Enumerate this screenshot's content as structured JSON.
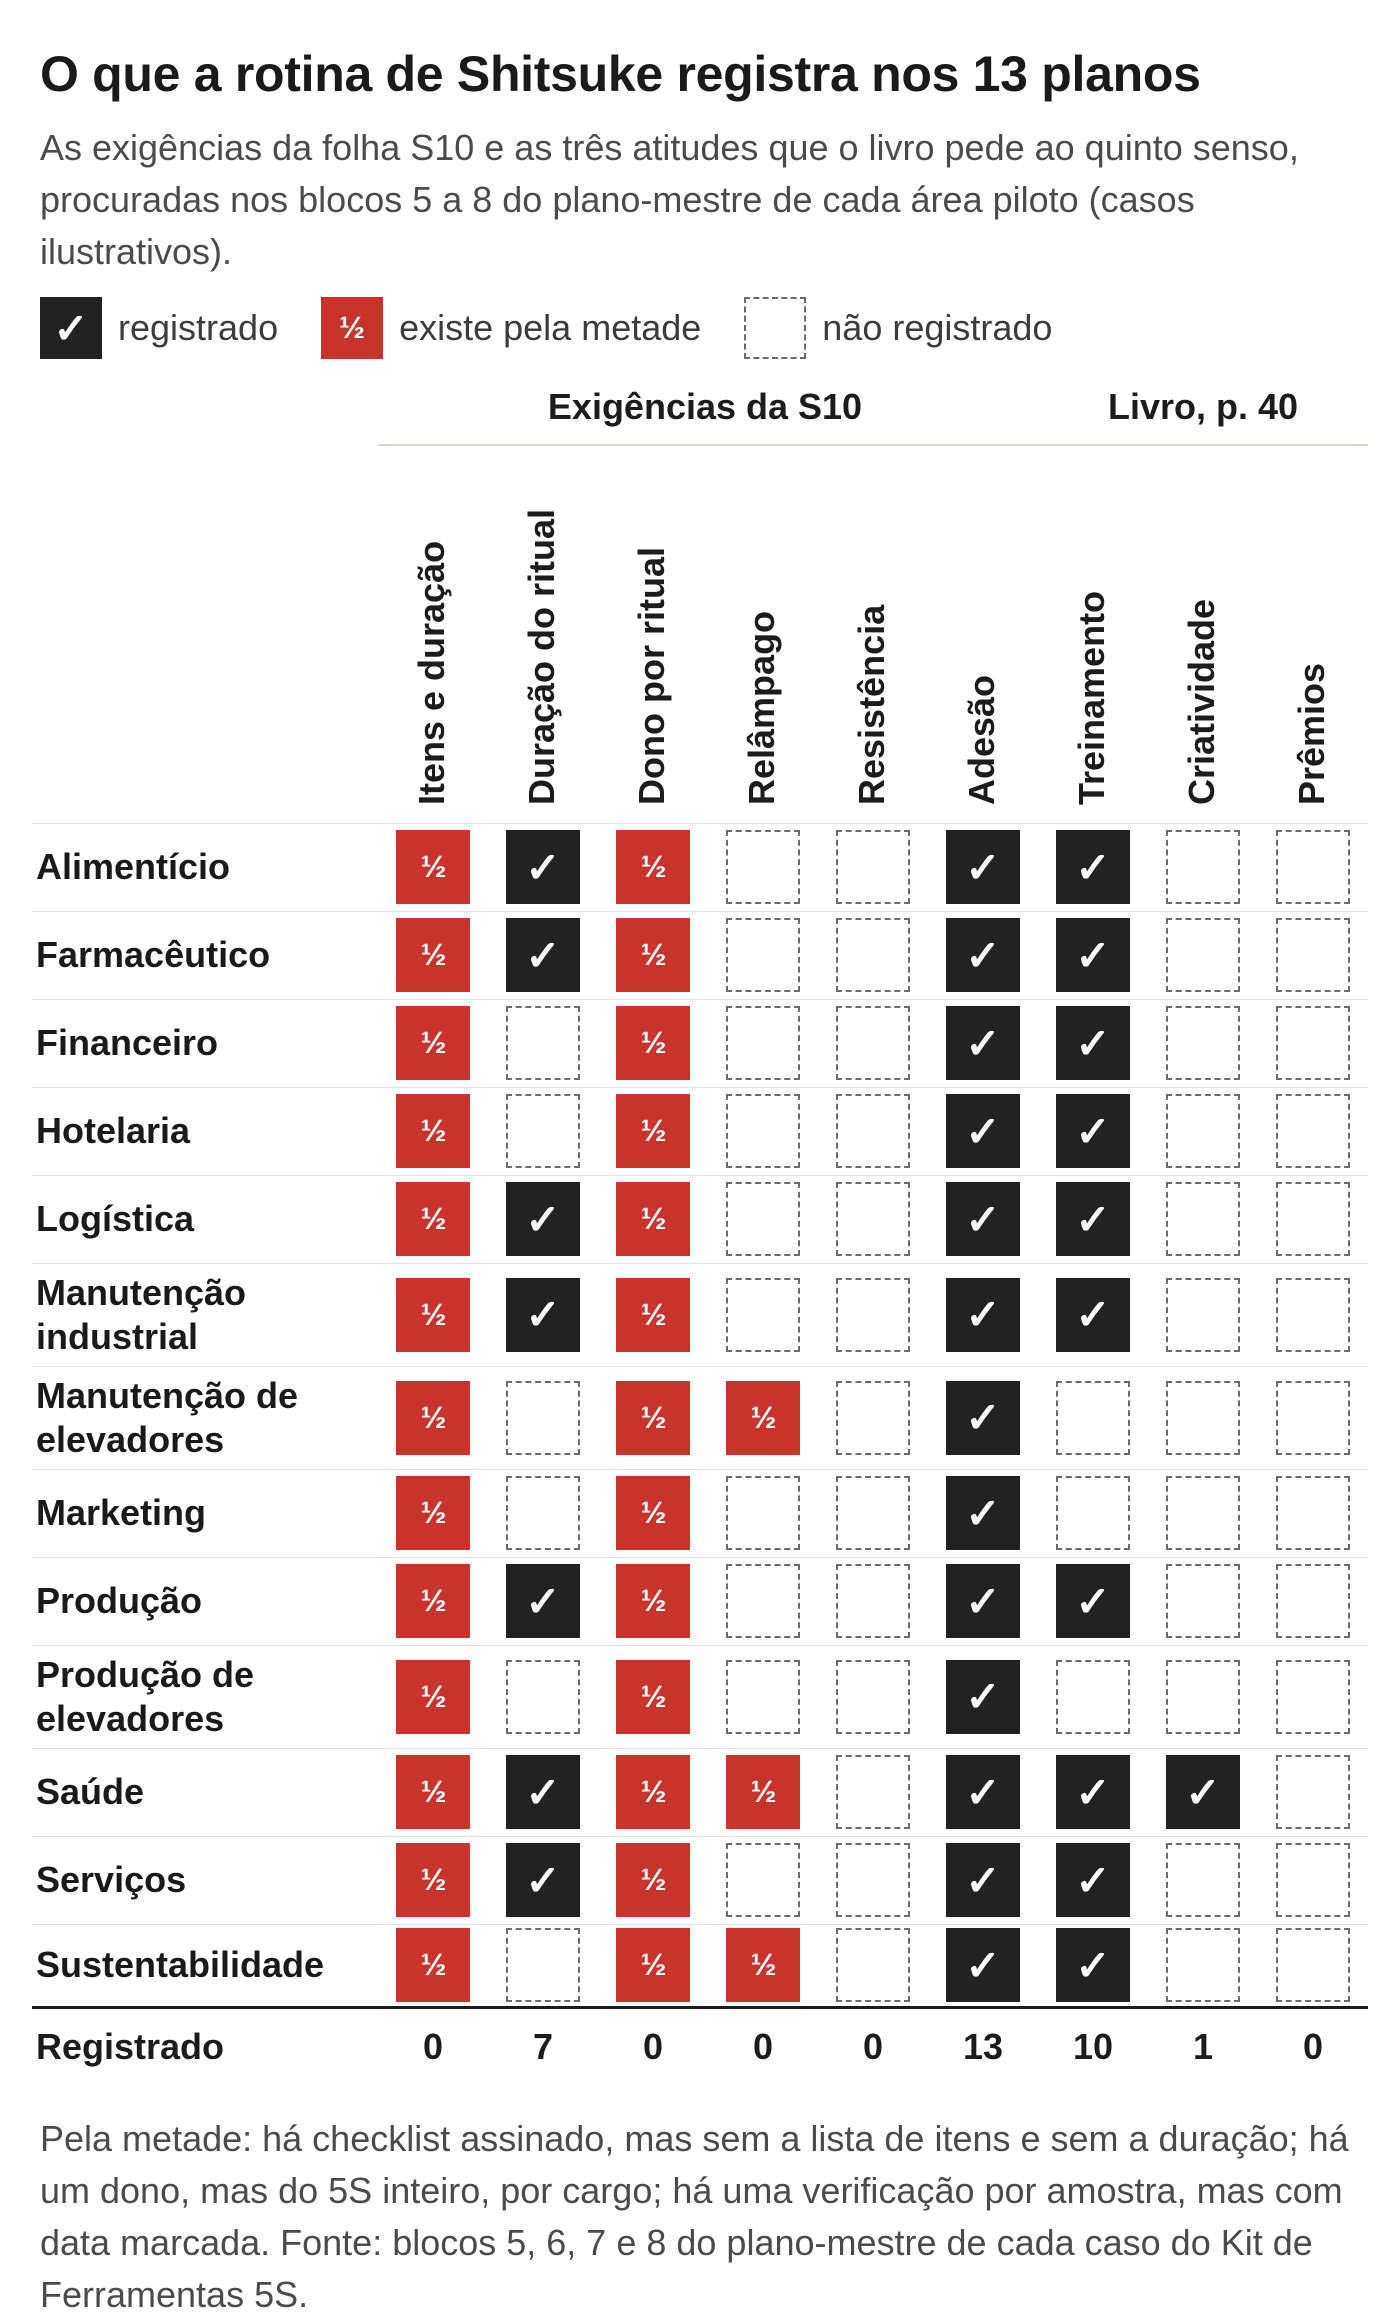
{
  "title": "O que a rotina de Shitsuke registra nos 13 planos",
  "subtitle": "As exigências da folha S10 e as três atitudes que o livro pede ao quinto senso, procuradas nos blocos 5 a 8 do plano-mestre de cada área piloto (casos ilustrativos).",
  "legend": {
    "registered": {
      "symbol": "✓",
      "label": "registrado"
    },
    "half": {
      "symbol": "½",
      "label": "existe pela metade"
    },
    "none": {
      "symbol": "",
      "label": "não registrado"
    }
  },
  "colors": {
    "registered": "#222222",
    "half": "#c8332b",
    "none_border": "#6b6b6b",
    "text": "#1c1c1c",
    "muted_text": "#4b4b4b"
  },
  "chart_data": {
    "type": "table",
    "column_groups": [
      {
        "label": "Exigências da S10",
        "columns": [
          "Itens e duração",
          "Duração do ritual",
          "Dono por ritual",
          "Relâmpago",
          "Resistência"
        ]
      },
      {
        "label": "Livro, p. 40",
        "columns": [
          "Adesão",
          "Treinamento",
          "Criatividade",
          "Prêmios"
        ]
      }
    ],
    "columns": [
      "Itens e duração",
      "Duração do ritual",
      "Dono por ritual",
      "Relâmpago",
      "Resistência",
      "Adesão",
      "Treinamento",
      "Criatividade",
      "Prêmios"
    ],
    "value_key": {
      "Y": "registrado",
      "H": "existe pela metade",
      "N": "não registrado"
    },
    "rows": [
      {
        "label": "Alimentício",
        "values": [
          "H",
          "Y",
          "H",
          "N",
          "N",
          "Y",
          "Y",
          "N",
          "N"
        ]
      },
      {
        "label": "Farmacêutico",
        "values": [
          "H",
          "Y",
          "H",
          "N",
          "N",
          "Y",
          "Y",
          "N",
          "N"
        ]
      },
      {
        "label": "Financeiro",
        "values": [
          "H",
          "N",
          "H",
          "N",
          "N",
          "Y",
          "Y",
          "N",
          "N"
        ]
      },
      {
        "label": "Hotelaria",
        "values": [
          "H",
          "N",
          "H",
          "N",
          "N",
          "Y",
          "Y",
          "N",
          "N"
        ]
      },
      {
        "label": "Logística",
        "values": [
          "H",
          "Y",
          "H",
          "N",
          "N",
          "Y",
          "Y",
          "N",
          "N"
        ]
      },
      {
        "label": "Manutenção industrial",
        "values": [
          "H",
          "Y",
          "H",
          "N",
          "N",
          "Y",
          "Y",
          "N",
          "N"
        ]
      },
      {
        "label": "Manutenção de elevadores",
        "values": [
          "H",
          "N",
          "H",
          "H",
          "N",
          "Y",
          "N",
          "N",
          "N"
        ]
      },
      {
        "label": "Marketing",
        "values": [
          "H",
          "N",
          "H",
          "N",
          "N",
          "Y",
          "N",
          "N",
          "N"
        ]
      },
      {
        "label": "Produção",
        "values": [
          "H",
          "Y",
          "H",
          "N",
          "N",
          "Y",
          "Y",
          "N",
          "N"
        ]
      },
      {
        "label": "Produção de elevadores",
        "values": [
          "H",
          "N",
          "H",
          "N",
          "N",
          "Y",
          "N",
          "N",
          "N"
        ]
      },
      {
        "label": "Saúde",
        "values": [
          "H",
          "Y",
          "H",
          "H",
          "N",
          "Y",
          "Y",
          "Y",
          "N"
        ]
      },
      {
        "label": "Serviços",
        "values": [
          "H",
          "Y",
          "H",
          "N",
          "N",
          "Y",
          "Y",
          "N",
          "N"
        ]
      },
      {
        "label": "Sustentabilidade",
        "values": [
          "H",
          "N",
          "H",
          "H",
          "N",
          "Y",
          "Y",
          "N",
          "N"
        ]
      }
    ],
    "totals": {
      "label": "Registrado",
      "values": [
        "0",
        "7",
        "0",
        "0",
        "0",
        "13",
        "10",
        "1",
        "0"
      ]
    }
  },
  "note": "Pela metade: há checklist assinado, mas sem a lista de itens e sem a duração; há um dono, mas do 5S inteiro, por cargo; há uma verificação por amostra, mas com data marcada. Fonte: blocos 5, 6, 7 e 8 do plano-mestre de cada caso do Kit de Ferramentas 5S."
}
